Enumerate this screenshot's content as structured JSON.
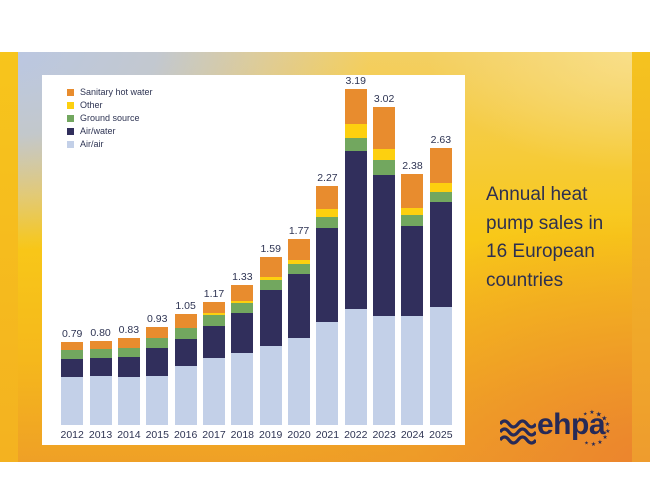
{
  "title": {
    "lines": [
      "Annual heat",
      "pump sales in",
      "16 European",
      "countries"
    ]
  },
  "logo": {
    "brand": "ehpa"
  },
  "colors": {
    "navy_text": "#2e3453",
    "background_gold": "#f8c818",
    "background_orange": "#ee9a31",
    "background_bluegray": "#bac7e3",
    "panel_white": "#ffffff"
  },
  "chart_data": {
    "type": "bar",
    "stacked": true,
    "title": "",
    "xlabel": "",
    "ylabel": "",
    "ylim": [
      0,
      3.4
    ],
    "grid": false,
    "legend_position": "top-left",
    "categories": [
      "2012",
      "2013",
      "2014",
      "2015",
      "2016",
      "2017",
      "2018",
      "2019",
      "2020",
      "2021",
      "2022",
      "2023",
      "2024",
      "2025"
    ],
    "series": [
      {
        "name": "Air/air",
        "color": "#c3d0e8",
        "values": [
          0.46,
          0.47,
          0.46,
          0.47,
          0.56,
          0.64,
          0.68,
          0.75,
          0.83,
          0.98,
          1.1,
          1.03,
          1.03,
          1.12
        ]
      },
      {
        "name": "Air/water",
        "color": "#312f5c",
        "values": [
          0.17,
          0.17,
          0.19,
          0.26,
          0.26,
          0.3,
          0.38,
          0.53,
          0.6,
          0.89,
          1.5,
          1.34,
          0.86,
          1.0
        ]
      },
      {
        "name": "Ground source",
        "color": "#72a75f",
        "values": [
          0.08,
          0.08,
          0.08,
          0.1,
          0.1,
          0.1,
          0.1,
          0.1,
          0.1,
          0.1,
          0.12,
          0.14,
          0.1,
          0.09
        ]
      },
      {
        "name": "Other",
        "color": "#fdd00f",
        "values": [
          0.0,
          0.0,
          0.0,
          0.0,
          0.0,
          0.02,
          0.02,
          0.02,
          0.04,
          0.08,
          0.14,
          0.11,
          0.07,
          0.09
        ]
      },
      {
        "name": "Sanitary hot water",
        "color": "#e88c2e",
        "values": [
          0.08,
          0.08,
          0.1,
          0.1,
          0.13,
          0.11,
          0.15,
          0.19,
          0.2,
          0.22,
          0.33,
          0.4,
          0.32,
          0.33
        ]
      }
    ],
    "totals": [
      "0.79",
      "0.80",
      "0.83",
      "0.93",
      "1.05",
      "1.17",
      "1.33",
      "1.59",
      "1.77",
      "2.27",
      "3.19",
      "3.02",
      "2.38",
      "2.63"
    ]
  }
}
